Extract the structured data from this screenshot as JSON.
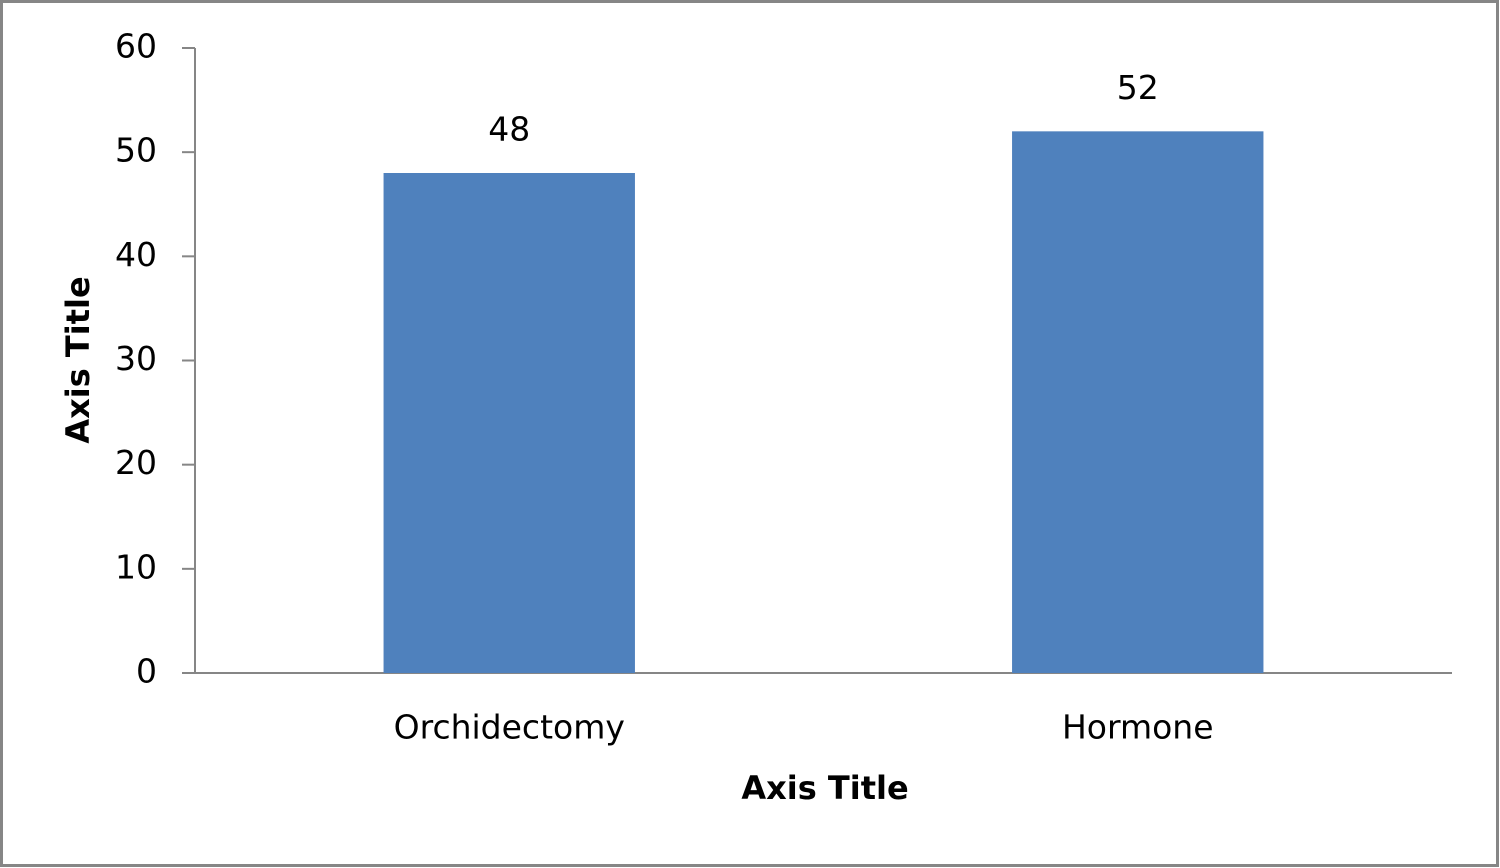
{
  "chart_data": {
    "type": "bar",
    "x_label": "Axis Title",
    "y_label": "Axis Title",
    "categories": [
      "Orchidectomy",
      "Hormone"
    ],
    "values": [
      48,
      52
    ],
    "color": "#4f81bd",
    "ylim": [
      0,
      60
    ],
    "yticks": [
      0,
      10,
      20,
      30,
      40,
      50,
      60
    ],
    "data_labels": true
  }
}
